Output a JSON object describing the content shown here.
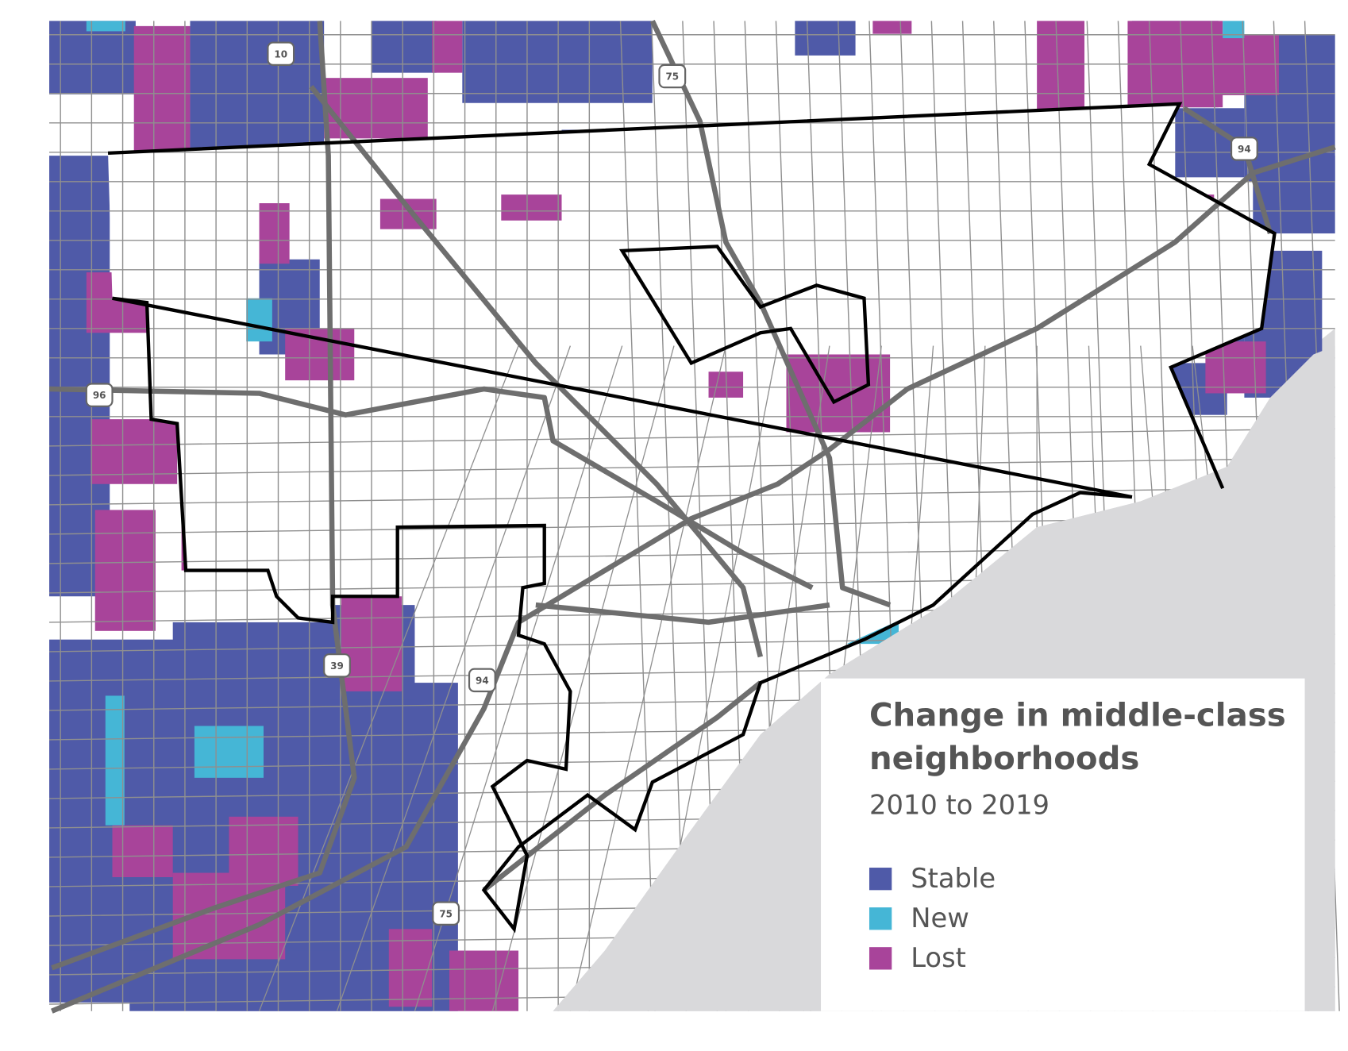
{
  "title": "Change in middle-class neighborhoods",
  "subtitle": "2010 to 2019",
  "legend": [
    {
      "label": "Stable",
      "color": "#4f5aa8"
    },
    {
      "label": "New",
      "color": "#45b6d6"
    },
    {
      "label": "Lost",
      "color": "#a8449a"
    }
  ],
  "shields": [
    "10",
    "75",
    "94",
    "96",
    "39",
    "94",
    "75"
  ]
}
